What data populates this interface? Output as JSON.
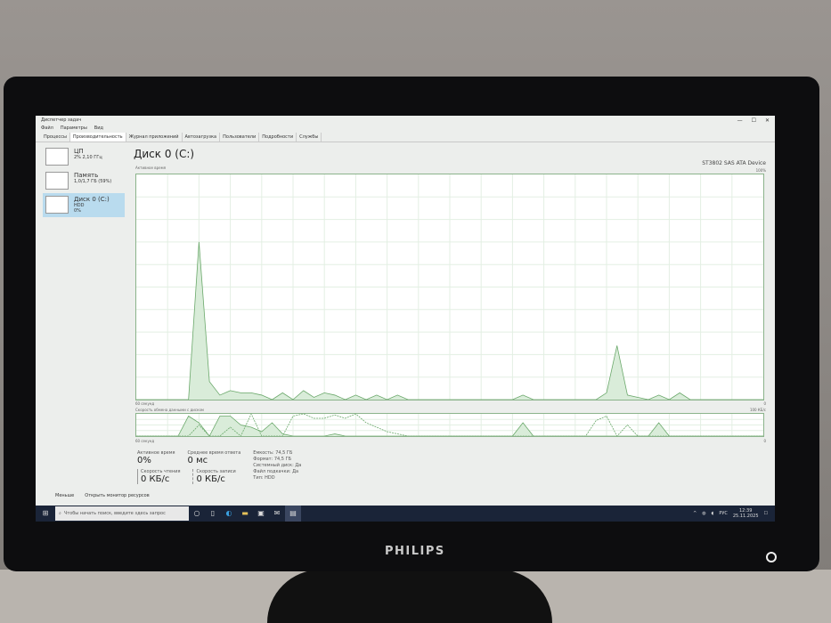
{
  "window": {
    "title": "Диспетчер задач",
    "controls": [
      "—",
      "☐",
      "✕"
    ]
  },
  "menu": [
    "Файл",
    "Параметры",
    "Вид"
  ],
  "tabs": [
    {
      "label": "Процессы"
    },
    {
      "label": "Производительность",
      "active": true
    },
    {
      "label": "Журнал приложений"
    },
    {
      "label": "Автозагрузка"
    },
    {
      "label": "Пользователи"
    },
    {
      "label": "Подробности"
    },
    {
      "label": "Службы"
    }
  ],
  "sidebar": [
    {
      "title": "ЦП",
      "sub": "2% 2,10 ГГц"
    },
    {
      "title": "Память",
      "sub": "1,0/1,7 ГБ (59%)"
    },
    {
      "title": "Диск 0 (C:)",
      "sub": "HDD",
      "sub2": "0%",
      "selected": true
    }
  ],
  "main": {
    "title": "Диск 0 (C:)",
    "device": "ST3802 SAS ATA Device",
    "chart1_label": "Активное время",
    "chart1_max": "100%",
    "chart1_time": "60 секунд",
    "chart1_min": "0",
    "chart2_label": "Скорость обмена данными с диском",
    "chart2_max": "100 КБ/с",
    "chart2_time": "60 секунд",
    "chart2_min": "0",
    "stats": {
      "active_label": "Активное время",
      "active_value": "0%",
      "resp_label": "Среднее время ответа",
      "resp_value": "0 мс",
      "read_label": "Скорость чтения",
      "read_value": "0 КБ/с",
      "write_label": "Скорость записи",
      "write_value": "0 КБ/с",
      "props": [
        {
          "k": "Емкость:",
          "v": "74,5 ГБ"
        },
        {
          "k": "Формат:",
          "v": "74,5 ГБ"
        },
        {
          "k": "Системный диск:",
          "v": "Да"
        },
        {
          "k": "Файл подкачки:",
          "v": "Да"
        },
        {
          "k": "Тип:",
          "v": "HDD"
        }
      ]
    }
  },
  "footer": {
    "less": "Меньше",
    "monitor": "Открыть монитор ресурсов"
  },
  "taskbar": {
    "search_placeholder": "Чтобы начать поиск, введите здесь запрос",
    "lang": "РУС",
    "time": "12:39",
    "date": "25.11.2025"
  },
  "brand": "PHILIPS",
  "colors": {
    "chart_line": "#6aa86a",
    "chart_fill": "#d9ecd9",
    "selected": "#b9dbee",
    "taskbar": "#1a2438"
  },
  "chart_data": {
    "type": "area",
    "active_time_percent": [
      0,
      0,
      0,
      0,
      0,
      0,
      70,
      8,
      2,
      4,
      3,
      3,
      2,
      0,
      3,
      0,
      4,
      1,
      3,
      2,
      0,
      2,
      0,
      2,
      0,
      2,
      0,
      0,
      0,
      0,
      0,
      0,
      0,
      0,
      0,
      0,
      0,
      2,
      0,
      0,
      0,
      0,
      0,
      0,
      0,
      3,
      24,
      2,
      1,
      0,
      2,
      0,
      3,
      0,
      0,
      0,
      0,
      0,
      0,
      0,
      0
    ],
    "ylim": [
      0,
      100
    ],
    "transfer_read": [
      0,
      0,
      0,
      0,
      0,
      90,
      60,
      0,
      90,
      90,
      50,
      40,
      20,
      60,
      10,
      0,
      0,
      0,
      0,
      10,
      0,
      0,
      0,
      0,
      0,
      0,
      0,
      0,
      0,
      0,
      0,
      0,
      0,
      0,
      0,
      0,
      0,
      60,
      0,
      0,
      0,
      0,
      0,
      0,
      0,
      0,
      0,
      0,
      0,
      0,
      60,
      0,
      0,
      0,
      0,
      0,
      0,
      0,
      0,
      0,
      0
    ],
    "transfer_write": [
      0,
      0,
      0,
      0,
      0,
      0,
      50,
      0,
      0,
      40,
      0,
      100,
      0,
      0,
      0,
      90,
      100,
      80,
      80,
      95,
      80,
      100,
      60,
      40,
      20,
      10,
      0,
      0,
      0,
      0,
      0,
      0,
      0,
      0,
      0,
      0,
      0,
      0,
      0,
      0,
      0,
      0,
      0,
      0,
      70,
      90,
      0,
      50,
      0,
      0,
      0,
      0,
      0,
      0,
      0,
      0,
      0,
      0,
      0,
      0,
      0
    ]
  }
}
